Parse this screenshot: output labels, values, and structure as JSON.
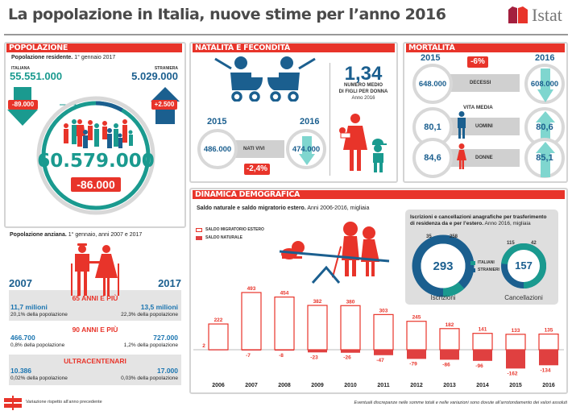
{
  "header": {
    "title": "La popolazione in Italia, nuove stime per l’anno 2016",
    "logo_text": "Istat"
  },
  "colors": {
    "red": "#e8342a",
    "teal": "#1a9a8f",
    "blue": "#1b5f8f",
    "light_teal": "#7fd6cf",
    "gray": "#d0d0d0"
  },
  "popolazione": {
    "section_title": "POPOLAZIONE",
    "subtitle_bold": "Popolazione residente.",
    "subtitle_rest": " 1° gennaio 2017",
    "italiana_label": "ITALIANA",
    "italiana_value": "55.551.000",
    "italiana_change": "-89.000",
    "straniera_label": "STRANIERA",
    "straniera_value": "5.029.000",
    "straniera_change": "+2.500",
    "total_value": "60.579.000",
    "total_change": "-86.000"
  },
  "anziani": {
    "subtitle_bold": "Popolazione anziana.",
    "subtitle_rest": " 1° gennaio, anni 2007 e 2017",
    "year_left": "2007",
    "year_right": "2017",
    "groups": [
      {
        "label": "65 ANNI E PIÙ",
        "left_value": "11,7 milioni",
        "left_pct": "20,1% della popolazione",
        "right_value": "13,5 milioni",
        "right_pct": "22,3% della popolazione"
      },
      {
        "label": "90 ANNI E PIÙ",
        "left_value": "466.700",
        "left_pct": "0,8% della popolazione",
        "right_value": "727.000",
        "right_pct": "1,2% della popolazione"
      },
      {
        "label": "ULTRACENTENARI",
        "left_value": "10.386",
        "left_pct": "0,02% della popolazione",
        "right_value": "17.000",
        "right_pct": "0,03% della popolazione"
      }
    ]
  },
  "legend_note": "Variazione rispetto all’anno precedente",
  "natalita": {
    "section_title": "NATALITÀ E FECONDITÀ",
    "year_from": "2015",
    "year_to": "2016",
    "value_from": "486.000",
    "value_to": "474.000",
    "arrow_label": "NATI VIVI",
    "change": "-2,4%",
    "fertility_value": "1,34",
    "fertility_label_1": "NUMERO MEDIO",
    "fertility_label_2": "DI FIGLI PER DONNA",
    "fertility_year": "Anno 2016"
  },
  "mortalita": {
    "section_title": "MORTALITÀ",
    "year_from": "2015",
    "year_to": "2016",
    "change": "-6%",
    "decessi": {
      "label": "DECESSI",
      "from": "648.000",
      "to": "608.000"
    },
    "vita_media_label": "VITA MEDIA",
    "uomini": {
      "label": "UOMINI",
      "from": "80,1",
      "to": "80,6"
    },
    "donne": {
      "label": "DONNE",
      "from": "84,6",
      "to": "85,1"
    }
  },
  "dinamica": {
    "section_title": "DINAMICA DEMOGRAFICA",
    "subtitle_bold": "Saldo naturale e saldo migratorio estero.",
    "subtitle_rest": " Anni 2006-2016, migliaia",
    "iscr_box": {
      "title_bold_1": "Iscrizioni e cancellazioni anagrafiche per trasferimento",
      "title_bold_2": "di residenza da e per l’estero.",
      "title_rest": " Anno 2016, migliaia",
      "legend": [
        "ITALIANI",
        "STRANIERI"
      ],
      "iscrizioni": {
        "label": "Iscrizioni",
        "total": "293",
        "italiani": 35,
        "stranieri": 258,
        "italiani_label": "35",
        "stranieri_label": "258"
      },
      "cancellazioni": {
        "label": "Cancellazioni",
        "total": "157",
        "italiani": 115,
        "stranieri": 42,
        "italiani_label": "115",
        "stranieri_label": "42"
      }
    }
  },
  "footnote": "Eventuali discrepanze nelle somme totali e nelle variazioni sono dovute all’arrotondamento dei valori assoluti",
  "chart_data": {
    "type": "bar",
    "title": "Saldo naturale e saldo migratorio estero. Anni 2006-2016, migliaia",
    "categories": [
      "2006",
      "2007",
      "2008",
      "2009",
      "2010",
      "2011",
      "2012",
      "2013",
      "2014",
      "2015",
      "2016"
    ],
    "series": [
      {
        "name": "SALDO MIGRATORIO ESTERO",
        "values": [
          222,
          493,
          454,
          382,
          380,
          303,
          245,
          182,
          141,
          133,
          135
        ]
      },
      {
        "name": "SALDO NATURALE",
        "values": [
          2,
          -7,
          -8,
          -23,
          -26,
          -47,
          -79,
          -86,
          -96,
          -162,
          -134
        ]
      }
    ],
    "xlabel": "",
    "ylabel": "migliaia",
    "ylim": [
      -170,
      500
    ],
    "grid": false,
    "legend": "top-left"
  }
}
